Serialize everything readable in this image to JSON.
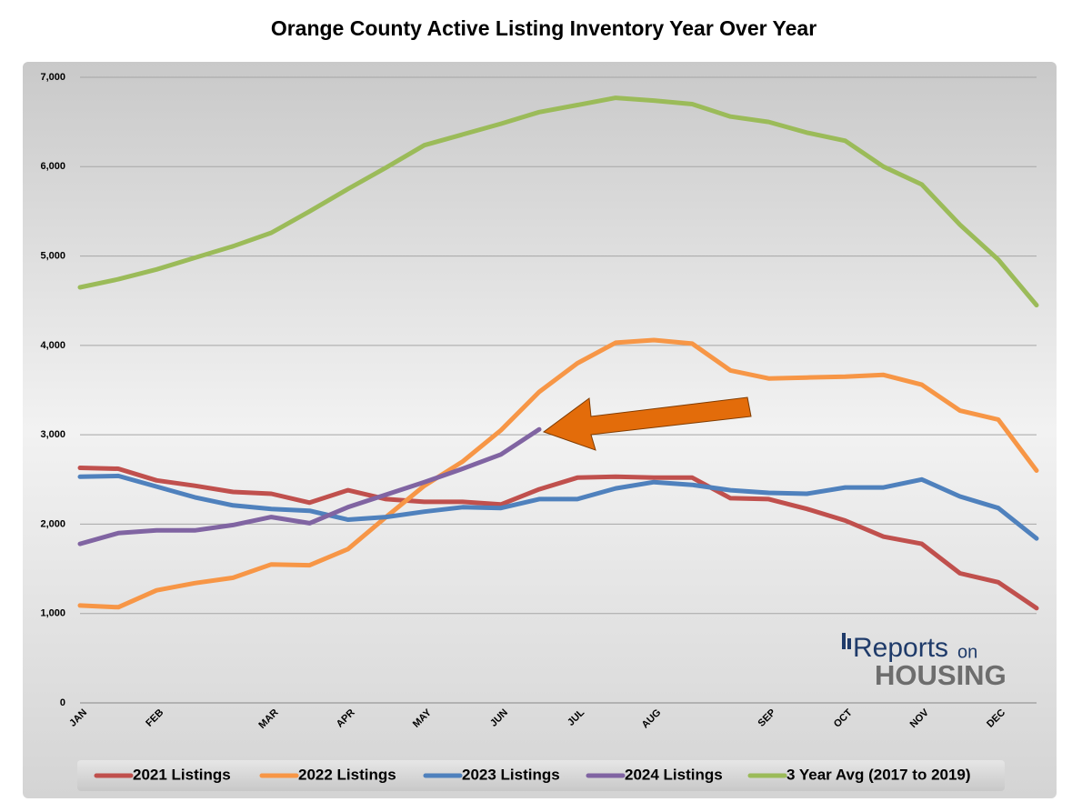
{
  "chart_data": {
    "type": "line",
    "title": "Orange County Active Listing Inventory Year Over Year",
    "categories": [
      "JAN",
      null,
      "FEB",
      null,
      null,
      "MAR",
      null,
      "APR",
      null,
      "MAY",
      null,
      "JUN",
      null,
      "JUL",
      null,
      "AUG",
      null,
      null,
      "SEP",
      null,
      "OCT",
      null,
      "NOV",
      null,
      "DEC",
      null
    ],
    "series": [
      {
        "name": "2021 Listings",
        "color": "#c0504d",
        "values": [
          2630,
          2620,
          2490,
          2430,
          2360,
          2340,
          2240,
          2380,
          2280,
          2250,
          2250,
          2220,
          2390,
          2520,
          2530,
          2520,
          2520,
          2290,
          2280,
          2170,
          2040,
          1860,
          1780,
          1450,
          1350,
          1060
        ]
      },
      {
        "name": "2022 Listings",
        "color": "#f79646",
        "values": [
          1090,
          1070,
          1260,
          1340,
          1400,
          1550,
          1540,
          1720,
          2080,
          2430,
          2700,
          3050,
          3480,
          3800,
          4030,
          4060,
          4020,
          3720,
          3630,
          3640,
          3650,
          3670,
          3560,
          3270,
          3170,
          2600
        ]
      },
      {
        "name": "2023 Listings",
        "color": "#4f81bd",
        "values": [
          2530,
          2540,
          2420,
          2300,
          2210,
          2170,
          2150,
          2050,
          2080,
          2140,
          2190,
          2180,
          2280,
          2280,
          2400,
          2470,
          2440,
          2380,
          2350,
          2340,
          2410,
          2410,
          2500,
          2310,
          2180,
          1840
        ]
      },
      {
        "name": "2024 Listings",
        "color": "#8064a2",
        "values": [
          1780,
          1900,
          1930,
          1930,
          1990,
          2080,
          2010,
          2190,
          2330,
          2470,
          2620,
          2780,
          3060,
          null,
          null,
          null,
          null,
          null,
          null,
          null,
          null,
          null,
          null,
          null,
          null,
          null
        ]
      },
      {
        "name": "3 Year Avg (2017 to 2019)",
        "color": "#9bbb59",
        "values": [
          4650,
          4740,
          4850,
          4980,
          5110,
          5260,
          5500,
          5750,
          5990,
          6240,
          6360,
          6480,
          6610,
          6690,
          6770,
          6740,
          6700,
          6560,
          6500,
          6380,
          6290,
          6000,
          5800,
          5350,
          4960,
          4450
        ]
      }
    ],
    "ylim": [
      0,
      7000
    ],
    "yticks": [
      0,
      {
        "value": 1000,
        "label": "1,000"
      },
      {
        "value": 2000,
        "label": "2,000"
      },
      {
        "value": 3000,
        "label": "3,000"
      },
      {
        "value": 4000,
        "label": "4,000"
      },
      {
        "value": 5000,
        "label": "5,000"
      },
      {
        "value": 6000,
        "label": "6,000"
      },
      {
        "value": 7000,
        "label": "7,000"
      }
    ],
    "grid": true,
    "legend": "bottom",
    "logo": {
      "reports": "Reports",
      "on": "on",
      "housing": "HOUSING"
    }
  }
}
